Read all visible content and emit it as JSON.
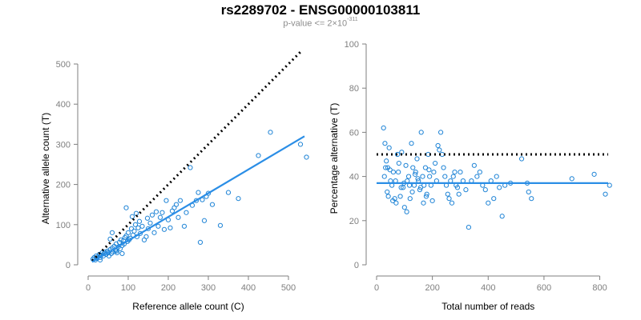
{
  "title": "rs2289702 - ENSG00000103811",
  "subtitle": {
    "prefix": "p-value <= 2×10",
    "exponent": "-311"
  },
  "colors": {
    "points": "#1f84d6",
    "fit": "#2b8ee6",
    "reference": "#000000",
    "axis": "#7f7f7f"
  },
  "chart_data": [
    {
      "type": "scatter",
      "xlabel": "Reference allele count (C)",
      "ylabel": "Alternative allele count (T)",
      "xlim": [
        0,
        550
      ],
      "ylim": [
        0,
        500
      ],
      "xticks": [
        0,
        100,
        200,
        300,
        400,
        500
      ],
      "yticks": [
        0,
        100,
        200,
        300,
        400,
        500
      ],
      "reference_line": {
        "slope": 1,
        "intercept": 0,
        "x_from": 10,
        "x_to": 535,
        "style": "dotted"
      },
      "fit_line": {
        "x_from": 10,
        "x_to": 540,
        "y_from": 7,
        "y_to": 320
      },
      "points": [
        [
          12,
          14
        ],
        [
          15,
          18
        ],
        [
          18,
          12
        ],
        [
          20,
          22
        ],
        [
          22,
          16
        ],
        [
          25,
          20
        ],
        [
          28,
          26
        ],
        [
          30,
          18
        ],
        [
          32,
          24
        ],
        [
          35,
          30
        ],
        [
          38,
          22
        ],
        [
          40,
          28
        ],
        [
          42,
          32
        ],
        [
          45,
          26
        ],
        [
          48,
          34
        ],
        [
          50,
          30
        ],
        [
          52,
          22
        ],
        [
          55,
          38
        ],
        [
          58,
          28
        ],
        [
          60,
          42
        ],
        [
          62,
          32
        ],
        [
          65,
          46
        ],
        [
          68,
          36
        ],
        [
          70,
          52
        ],
        [
          72,
          30
        ],
        [
          75,
          44
        ],
        [
          78,
          56
        ],
        [
          80,
          40
        ],
        [
          82,
          62
        ],
        [
          85,
          48
        ],
        [
          88,
          60
        ],
        [
          90,
          52
        ],
        [
          92,
          68
        ],
        [
          95,
          72
        ],
        [
          98,
          58
        ],
        [
          100,
          80
        ],
        [
          102,
          62
        ],
        [
          105,
          66
        ],
        [
          108,
          90
        ],
        [
          110,
          120
        ],
        [
          112,
          74
        ],
        [
          115,
          84
        ],
        [
          118,
          100
        ],
        [
          120,
          128
        ],
        [
          122,
          70
        ],
        [
          125,
          92
        ],
        [
          128,
          108
        ],
        [
          130,
          78
        ],
        [
          135,
          96
        ],
        [
          140,
          62
        ],
        [
          145,
          70
        ],
        [
          148,
          116
        ],
        [
          150,
          90
        ],
        [
          155,
          104
        ],
        [
          160,
          124
        ],
        [
          165,
          80
        ],
        [
          170,
          132
        ],
        [
          175,
          96
        ],
        [
          180,
          118
        ],
        [
          185,
          130
        ],
        [
          190,
          88
        ],
        [
          195,
          160
        ],
        [
          200,
          112
        ],
        [
          205,
          92
        ],
        [
          210,
          134
        ],
        [
          215,
          142
        ],
        [
          220,
          150
        ],
        [
          225,
          118
        ],
        [
          230,
          160
        ],
        [
          240,
          96
        ],
        [
          245,
          130
        ],
        [
          255,
          242
        ],
        [
          260,
          148
        ],
        [
          270,
          160
        ],
        [
          275,
          180
        ],
        [
          280,
          56
        ],
        [
          285,
          162
        ],
        [
          290,
          110
        ],
        [
          295,
          170
        ],
        [
          300,
          178
        ],
        [
          310,
          150
        ],
        [
          330,
          98
        ],
        [
          350,
          180
        ],
        [
          375,
          165
        ],
        [
          425,
          272
        ],
        [
          455,
          330
        ],
        [
          530,
          300
        ],
        [
          545,
          268
        ],
        [
          60,
          80
        ],
        [
          55,
          64
        ],
        [
          95,
          142
        ],
        [
          70,
          34
        ],
        [
          85,
          28
        ],
        [
          30,
          12
        ]
      ]
    },
    {
      "type": "scatter",
      "xlabel": "Total number of reads",
      "ylabel": "Percentage alternative (T)",
      "xlim": [
        0,
        830
      ],
      "ylim": [
        0,
        100
      ],
      "xticks": [
        0,
        200,
        400,
        600,
        800
      ],
      "yticks": [
        0,
        20,
        40,
        60,
        80,
        100
      ],
      "reference_line": {
        "y": 50,
        "x_from": 0,
        "x_to": 830,
        "style": "dotted"
      },
      "fit_line": {
        "y": 37,
        "x_from": 0,
        "x_to": 830
      },
      "points": [
        [
          25,
          62
        ],
        [
          30,
          55
        ],
        [
          35,
          47
        ],
        [
          40,
          44
        ],
        [
          45,
          53
        ],
        [
          50,
          38
        ],
        [
          55,
          36
        ],
        [
          60,
          42
        ],
        [
          65,
          30
        ],
        [
          70,
          28
        ],
        [
          75,
          50
        ],
        [
          80,
          46
        ],
        [
          85,
          31
        ],
        [
          90,
          51
        ],
        [
          95,
          35
        ],
        [
          100,
          26
        ],
        [
          105,
          45
        ],
        [
          110,
          38
        ],
        [
          115,
          40
        ],
        [
          120,
          30
        ],
        [
          125,
          55
        ],
        [
          130,
          44
        ],
        [
          135,
          36
        ],
        [
          140,
          42
        ],
        [
          145,
          48
        ],
        [
          150,
          38
        ],
        [
          155,
          34
        ],
        [
          160,
          60
        ],
        [
          165,
          40
        ],
        [
          170,
          36
        ],
        [
          175,
          44
        ],
        [
          180,
          32
        ],
        [
          185,
          50
        ],
        [
          190,
          40
        ],
        [
          195,
          36
        ],
        [
          200,
          29
        ],
        [
          205,
          42
        ],
        [
          210,
          46
        ],
        [
          215,
          38
        ],
        [
          220,
          54
        ],
        [
          225,
          52
        ],
        [
          230,
          60
        ],
        [
          235,
          50
        ],
        [
          240,
          44
        ],
        [
          245,
          40
        ],
        [
          250,
          36
        ],
        [
          255,
          32
        ],
        [
          260,
          30
        ],
        [
          265,
          38
        ],
        [
          270,
          28
        ],
        [
          275,
          40
        ],
        [
          280,
          42
        ],
        [
          285,
          36
        ],
        [
          290,
          35
        ],
        [
          295,
          32
        ],
        [
          300,
          42
        ],
        [
          310,
          38
        ],
        [
          320,
          34
        ],
        [
          330,
          17
        ],
        [
          340,
          38
        ],
        [
          350,
          45
        ],
        [
          360,
          40
        ],
        [
          370,
          42
        ],
        [
          380,
          36
        ],
        [
          390,
          34
        ],
        [
          400,
          28
        ],
        [
          410,
          38
        ],
        [
          420,
          30
        ],
        [
          430,
          40
        ],
        [
          440,
          35
        ],
        [
          450,
          22
        ],
        [
          460,
          36
        ],
        [
          480,
          37
        ],
        [
          520,
          48
        ],
        [
          540,
          37
        ],
        [
          545,
          33
        ],
        [
          555,
          30
        ],
        [
          700,
          39
        ],
        [
          780,
          41
        ],
        [
          820,
          32
        ],
        [
          835,
          36
        ],
        [
          28,
          40
        ],
        [
          32,
          44
        ],
        [
          38,
          33
        ],
        [
          42,
          31
        ],
        [
          48,
          43
        ],
        [
          58,
          29
        ],
        [
          68,
          38
        ],
        [
          78,
          42
        ],
        [
          88,
          35
        ],
        [
          98,
          37
        ],
        [
          108,
          24
        ],
        [
          118,
          36
        ],
        [
          128,
          33
        ],
        [
          138,
          41
        ],
        [
          148,
          39
        ],
        [
          158,
          35
        ],
        [
          168,
          28
        ],
        [
          178,
          31
        ],
        [
          188,
          43
        ]
      ]
    }
  ]
}
